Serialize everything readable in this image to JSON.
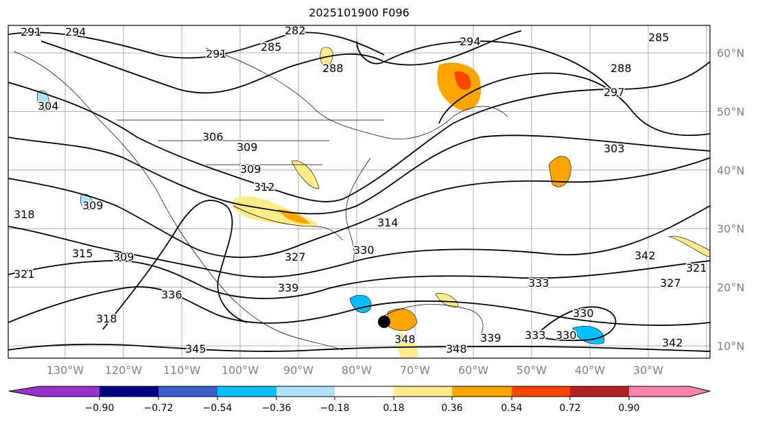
{
  "title": "2025101900 F096",
  "map": {
    "lon_labels": [
      "130°W",
      "120°W",
      "110°W",
      "100°W",
      "90°W",
      "80°W",
      "70°W",
      "60°W",
      "50°W",
      "40°W",
      "30°W"
    ],
    "lat_labels": [
      "60°N",
      "50°N",
      "40°N",
      "30°N",
      "20°N",
      "10°N"
    ],
    "contour_labels": [
      "291",
      "294",
      "282",
      "285",
      "291",
      "288",
      "294",
      "285",
      "288",
      "297",
      "303",
      "306",
      "309",
      "309",
      "312",
      "309",
      "318",
      "315",
      "321",
      "309",
      "327",
      "314",
      "330",
      "333",
      "336",
      "339",
      "342",
      "345",
      "348",
      "348",
      "339",
      "330",
      "333",
      "330",
      "342",
      "304",
      "318",
      "327",
      "321"
    ],
    "fill_colors": {
      "light_yellow": "#ffec8b",
      "orange": "#ffa500",
      "red_orange": "#ff4500",
      "light_blue": "#b0e2ff",
      "deep_sky": "#00bfff"
    }
  },
  "colorbar": {
    "colors": [
      "#9932cc",
      "#000080",
      "#3a5fcd",
      "#00bfff",
      "#b0e2ff",
      "#ffffff",
      "#ffec8b",
      "#ffa500",
      "#ff4500",
      "#b22222",
      "#ff82ab"
    ],
    "ticks": [
      "−0.90",
      "−0.72",
      "−0.54",
      "−0.36",
      "−0.18",
      "0.18",
      "0.36",
      "0.54",
      "0.72",
      "0.90"
    ]
  }
}
